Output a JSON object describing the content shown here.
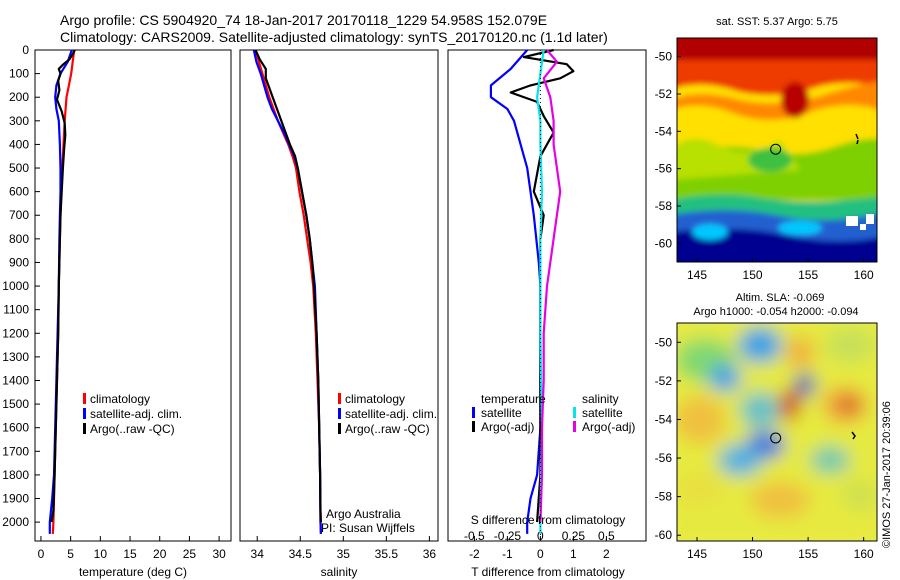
{
  "header": {
    "line1": "Argo profile: CS 5904920_74 18-Jan-2017 20170118_1229 54.958S 152.079E",
    "line2": "Climatology: CARS2009. Satellite-adjusted climatology: synTS_20170120.nc (1.1d later)"
  },
  "colors": {
    "climatology": "#ff0000",
    "satellite": "#0000ff",
    "argo": "#000000",
    "satellite_salinity": "#00e5ee",
    "argo_salinity_adj": "#e600e6"
  },
  "chart_data": [
    {
      "type": "line",
      "id": "temperature",
      "xlabel": "temperature (deg C)",
      "ylabel": "",
      "xlim": [
        -1,
        32
      ],
      "ylim": [
        2080,
        0
      ],
      "xticks": [
        0,
        5,
        10,
        15,
        20,
        25,
        30
      ],
      "yticks": [
        0,
        100,
        200,
        300,
        400,
        500,
        600,
        700,
        800,
        900,
        1000,
        1100,
        1200,
        1300,
        1400,
        1500,
        1600,
        1700,
        1800,
        1900,
        2000
      ],
      "legend": [
        "climatology",
        "satellite-adj. clim.",
        "Argo(..raw -QC)"
      ],
      "series": [
        {
          "name": "climatology",
          "color": "#ff0000",
          "points": [
            [
              5.6,
              0
            ],
            [
              5.4,
              40
            ],
            [
              5.1,
              100
            ],
            [
              4.7,
              150
            ],
            [
              4.3,
              200
            ],
            [
              4.0,
              300
            ],
            [
              3.8,
              400
            ],
            [
              3.6,
              500
            ],
            [
              3.4,
              600
            ],
            [
              3.3,
              700
            ],
            [
              3.2,
              800
            ],
            [
              3.0,
              1000
            ],
            [
              2.9,
              1200
            ],
            [
              2.7,
              1400
            ],
            [
              2.5,
              1600
            ],
            [
              2.3,
              1800
            ],
            [
              2.1,
              2000
            ],
            [
              2.0,
              2050
            ]
          ]
        },
        {
          "name": "satellite-adj. clim.",
          "color": "#0000ff",
          "points": [
            [
              5.2,
              0
            ],
            [
              4.5,
              50
            ],
            [
              3.3,
              100
            ],
            [
              2.6,
              150
            ],
            [
              2.4,
              200
            ],
            [
              2.6,
              250
            ],
            [
              3.0,
              300
            ],
            [
              3.2,
              400
            ],
            [
              3.3,
              500
            ],
            [
              3.3,
              600
            ],
            [
              3.2,
              700
            ],
            [
              3.1,
              800
            ],
            [
              3.0,
              1000
            ],
            [
              2.8,
              1200
            ],
            [
              2.6,
              1400
            ],
            [
              2.4,
              1600
            ],
            [
              2.2,
              1800
            ],
            [
              1.9,
              1900
            ],
            [
              1.5,
              2000
            ],
            [
              1.5,
              2050
            ]
          ]
        },
        {
          "name": "Argo(..raw -QC)",
          "color": "#000000",
          "points": [
            [
              5.7,
              0
            ],
            [
              5.3,
              20
            ],
            [
              4.8,
              40
            ],
            [
              3.8,
              60
            ],
            [
              3.0,
              80
            ],
            [
              3.3,
              100
            ],
            [
              2.9,
              130
            ],
            [
              3.1,
              170
            ],
            [
              2.7,
              210
            ],
            [
              3.5,
              260
            ],
            [
              4.0,
              310
            ],
            [
              4.1,
              360
            ],
            [
              3.9,
              420
            ],
            [
              3.7,
              500
            ],
            [
              3.5,
              600
            ],
            [
              3.3,
              700
            ],
            [
              3.2,
              800
            ],
            [
              3.0,
              1000
            ],
            [
              2.9,
              1200
            ],
            [
              2.7,
              1400
            ],
            [
              2.5,
              1600
            ],
            [
              2.3,
              1800
            ],
            [
              2.1,
              1950
            ],
            [
              1.8,
              2000
            ]
          ]
        }
      ]
    },
    {
      "type": "line",
      "id": "salinity",
      "xlabel": "salinity",
      "ylabel": "",
      "xlim": [
        33.8,
        36.1
      ],
      "ylim": [
        2080,
        0
      ],
      "xticks": [
        34,
        34.5,
        35,
        35.5,
        36
      ],
      "legend": [
        "climatology",
        "satellite-adj. clim.",
        "Argo(..raw -QC)"
      ],
      "annotations": [
        "Argo Australia",
        "PI: Susan Wijffels"
      ],
      "series": [
        {
          "name": "climatology",
          "color": "#ff0000",
          "points": [
            [
              33.98,
              0
            ],
            [
              34.02,
              50
            ],
            [
              34.06,
              100
            ],
            [
              34.1,
              150
            ],
            [
              34.14,
              200
            ],
            [
              34.19,
              250
            ],
            [
              34.24,
              300
            ],
            [
              34.3,
              350
            ],
            [
              34.36,
              400
            ],
            [
              34.41,
              450
            ],
            [
              34.45,
              500
            ],
            [
              34.49,
              600
            ],
            [
              34.54,
              700
            ],
            [
              34.58,
              800
            ],
            [
              34.62,
              900
            ],
            [
              34.65,
              1000
            ],
            [
              34.68,
              1200
            ],
            [
              34.7,
              1400
            ],
            [
              34.72,
              1600
            ],
            [
              34.73,
              1800
            ],
            [
              34.735,
              2000
            ],
            [
              34.74,
              2050
            ]
          ]
        },
        {
          "name": "satellite-adj. clim.",
          "color": "#0000ff",
          "points": [
            [
              33.96,
              0
            ],
            [
              33.99,
              50
            ],
            [
              34.04,
              100
            ],
            [
              34.08,
              150
            ],
            [
              34.12,
              200
            ],
            [
              34.17,
              250
            ],
            [
              34.24,
              300
            ],
            [
              34.31,
              350
            ],
            [
              34.37,
              400
            ],
            [
              34.43,
              450
            ],
            [
              34.47,
              500
            ],
            [
              34.52,
              600
            ],
            [
              34.57,
              700
            ],
            [
              34.61,
              800
            ],
            [
              34.64,
              900
            ],
            [
              34.67,
              1000
            ],
            [
              34.69,
              1200
            ],
            [
              34.71,
              1400
            ],
            [
              34.72,
              1600
            ],
            [
              34.73,
              1800
            ],
            [
              34.735,
              2000
            ],
            [
              34.74,
              2050
            ]
          ]
        },
        {
          "name": "Argo(..raw -QC)",
          "color": "#000000",
          "points": [
            [
              33.98,
              0
            ],
            [
              34.03,
              40
            ],
            [
              34.1,
              80
            ],
            [
              34.1,
              120
            ],
            [
              34.13,
              150
            ],
            [
              34.18,
              200
            ],
            [
              34.23,
              250
            ],
            [
              34.28,
              300
            ],
            [
              34.33,
              350
            ],
            [
              34.38,
              400
            ],
            [
              34.44,
              450
            ],
            [
              34.47,
              500
            ],
            [
              34.52,
              600
            ],
            [
              34.57,
              700
            ],
            [
              34.61,
              800
            ],
            [
              34.64,
              900
            ],
            [
              34.66,
              1000
            ],
            [
              34.69,
              1200
            ],
            [
              34.71,
              1400
            ],
            [
              34.72,
              1600
            ],
            [
              34.73,
              1800
            ],
            [
              34.735,
              1950
            ],
            [
              34.74,
              2000
            ]
          ]
        }
      ]
    },
    {
      "type": "line",
      "id": "differences",
      "xlabel": "T difference from climatology",
      "xlabel_top": "S difference from climatology",
      "xlim": [
        -2.8,
        3.2
      ],
      "ylim": [
        2080,
        0
      ],
      "xticks": [
        -2,
        -1,
        0,
        1,
        2
      ],
      "sticks": [
        "-0.5",
        "-0.25",
        "0",
        "0.25",
        "0.5"
      ],
      "legend_t_header": "temperature",
      "legend_s_header": "salinity",
      "legend_t": [
        "satellite",
        "Argo(-adj)"
      ],
      "legend_s": [
        "satellite",
        "Argo(-adj)"
      ],
      "series": [
        {
          "name": "T satellite",
          "color": "#0000ff",
          "points": [
            [
              -0.4,
              0
            ],
            [
              -0.9,
              80
            ],
            [
              -1.5,
              150
            ],
            [
              -1.5,
              200
            ],
            [
              -1.0,
              250
            ],
            [
              -0.8,
              300
            ],
            [
              -0.6,
              400
            ],
            [
              -0.4,
              500
            ],
            [
              -0.2,
              700
            ],
            [
              -0.05,
              900
            ],
            [
              0,
              1000
            ],
            [
              0,
              1200
            ],
            [
              0,
              1400
            ],
            [
              0,
              1600
            ],
            [
              -0.1,
              1800
            ],
            [
              -0.3,
              1900
            ],
            [
              -0.4,
              2000
            ],
            [
              -0.4,
              2050
            ]
          ]
        },
        {
          "name": "T Argo(-adj)",
          "color": "#000000",
          "points": [
            [
              0.4,
              0
            ],
            [
              -0.5,
              30
            ],
            [
              0.8,
              60
            ],
            [
              1.0,
              90
            ],
            [
              0.6,
              120
            ],
            [
              -0.3,
              150
            ],
            [
              -0.9,
              180
            ],
            [
              -0.1,
              220
            ],
            [
              0.1,
              280
            ],
            [
              0.4,
              350
            ],
            [
              0.0,
              450
            ],
            [
              -0.2,
              600
            ],
            [
              0.1,
              700
            ],
            [
              0.0,
              800
            ],
            [
              0.0,
              900
            ],
            [
              0,
              1000
            ],
            [
              0,
              1200
            ],
            [
              0,
              1400
            ],
            [
              0,
              1600
            ],
            [
              0,
              1800
            ],
            [
              -0.1,
              2000
            ]
          ]
        },
        {
          "name": "S satellite",
          "color": "#00e5ee",
          "points": [
            [
              0.1,
              0
            ],
            [
              0.0,
              100
            ],
            [
              -0.1,
              200
            ],
            [
              0.0,
              300
            ],
            [
              0.0,
              400
            ],
            [
              0.05,
              600
            ],
            [
              0.0,
              800
            ],
            [
              0.0,
              1000
            ],
            [
              0.0,
              1200
            ],
            [
              0.02,
              1400
            ],
            [
              0.05,
              1600
            ],
            [
              0.02,
              1800
            ],
            [
              0.0,
              2000
            ],
            [
              0.0,
              2050
            ]
          ]
        },
        {
          "name": "S Argo(-adj)",
          "color": "#e600e6",
          "points": [
            [
              0.2,
              0
            ],
            [
              0.5,
              50
            ],
            [
              0.1,
              120
            ],
            [
              0.3,
              200
            ],
            [
              0.4,
              300
            ],
            [
              0.4,
              400
            ],
            [
              0.5,
              500
            ],
            [
              0.6,
              600
            ],
            [
              0.5,
              700
            ],
            [
              0.4,
              800
            ],
            [
              0.3,
              900
            ],
            [
              0.2,
              1000
            ],
            [
              0.1,
              1200
            ],
            [
              0.1,
              1400
            ],
            [
              0.05,
              1600
            ],
            [
              0.05,
              1800
            ],
            [
              0.0,
              2000
            ]
          ]
        }
      ]
    },
    {
      "type": "heatmap",
      "id": "sst-map",
      "title": "sat. SST: 5.37  Argo: 5.75",
      "xticks": [
        145,
        150,
        155,
        160
      ],
      "yticks": [
        -50,
        -52,
        -54,
        -56,
        -58,
        -60
      ],
      "xlim": [
        143.2,
        161.2
      ],
      "ylim": [
        -61,
        -49
      ],
      "marker": {
        "lon": 152.079,
        "lat": -54.958
      }
    },
    {
      "type": "heatmap",
      "id": "sla-map",
      "title": "Altim. SLA: -0.069",
      "subtitle": "Argo h1000: -0.054 h2000: -0.094",
      "xticks": [
        145,
        150,
        155,
        160
      ],
      "yticks": [
        -50,
        -52,
        -54,
        -56,
        -58,
        -60
      ],
      "xlim": [
        143.2,
        161.2
      ],
      "ylim": [
        -60.3,
        -49
      ],
      "marker": {
        "lon": 152.079,
        "lat": -54.958
      }
    }
  ],
  "footer": {
    "timestamp": "©IMOS 27-Jan-2017 20:39:06"
  }
}
